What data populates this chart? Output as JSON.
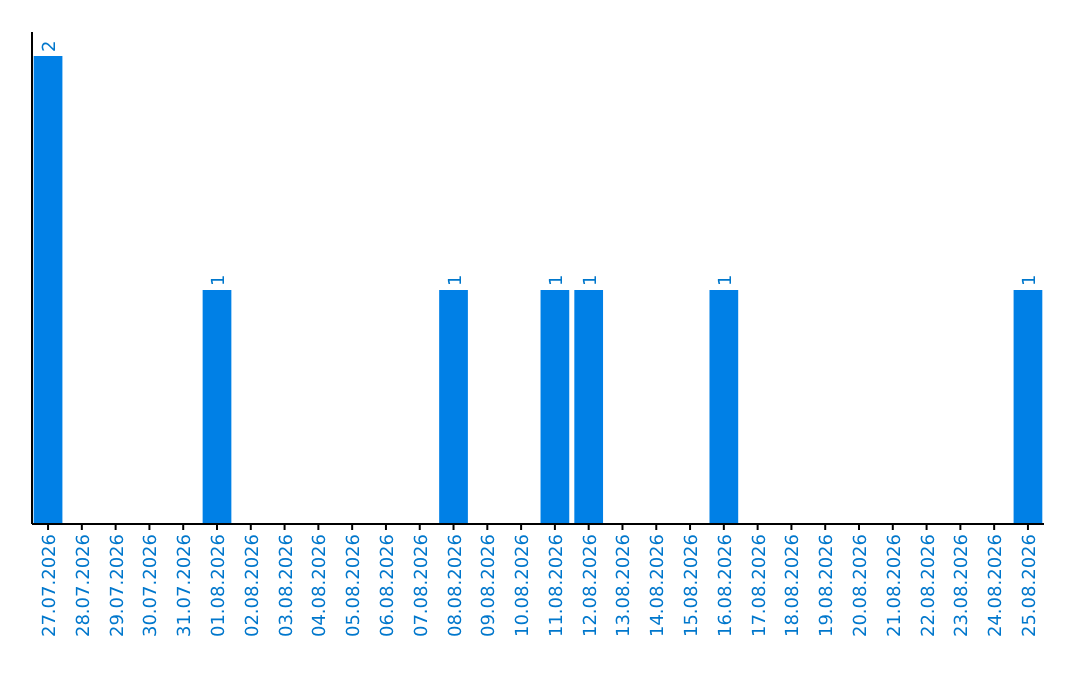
{
  "chart_data": {
    "type": "bar",
    "categories": [
      "27.07.2026",
      "28.07.2026",
      "29.07.2026",
      "30.07.2026",
      "31.07.2026",
      "01.08.2026",
      "02.08.2026",
      "03.08.2026",
      "04.08.2026",
      "05.08.2026",
      "06.08.2026",
      "07.08.2026",
      "08.08.2026",
      "09.08.2026",
      "10.08.2026",
      "11.08.2026",
      "12.08.2026",
      "13.08.2026",
      "14.08.2026",
      "15.08.2026",
      "16.08.2026",
      "17.08.2026",
      "18.08.2026",
      "19.08.2026",
      "20.08.2026",
      "21.08.2026",
      "22.08.2026",
      "23.08.2026",
      "24.08.2026",
      "25.08.2026"
    ],
    "values": [
      2,
      0,
      0,
      0,
      0,
      1,
      0,
      0,
      0,
      0,
      0,
      0,
      1,
      0,
      0,
      1,
      1,
      0,
      0,
      0,
      1,
      0,
      0,
      0,
      0,
      0,
      0,
      0,
      0,
      1
    ],
    "value_labels": [
      "2",
      null,
      null,
      null,
      null,
      "1",
      null,
      null,
      null,
      null,
      null,
      null,
      "1",
      null,
      null,
      "1",
      "1",
      null,
      null,
      null,
      "1",
      null,
      null,
      null,
      null,
      null,
      null,
      null,
      null,
      "1"
    ],
    "color": "#0080e6"
  }
}
